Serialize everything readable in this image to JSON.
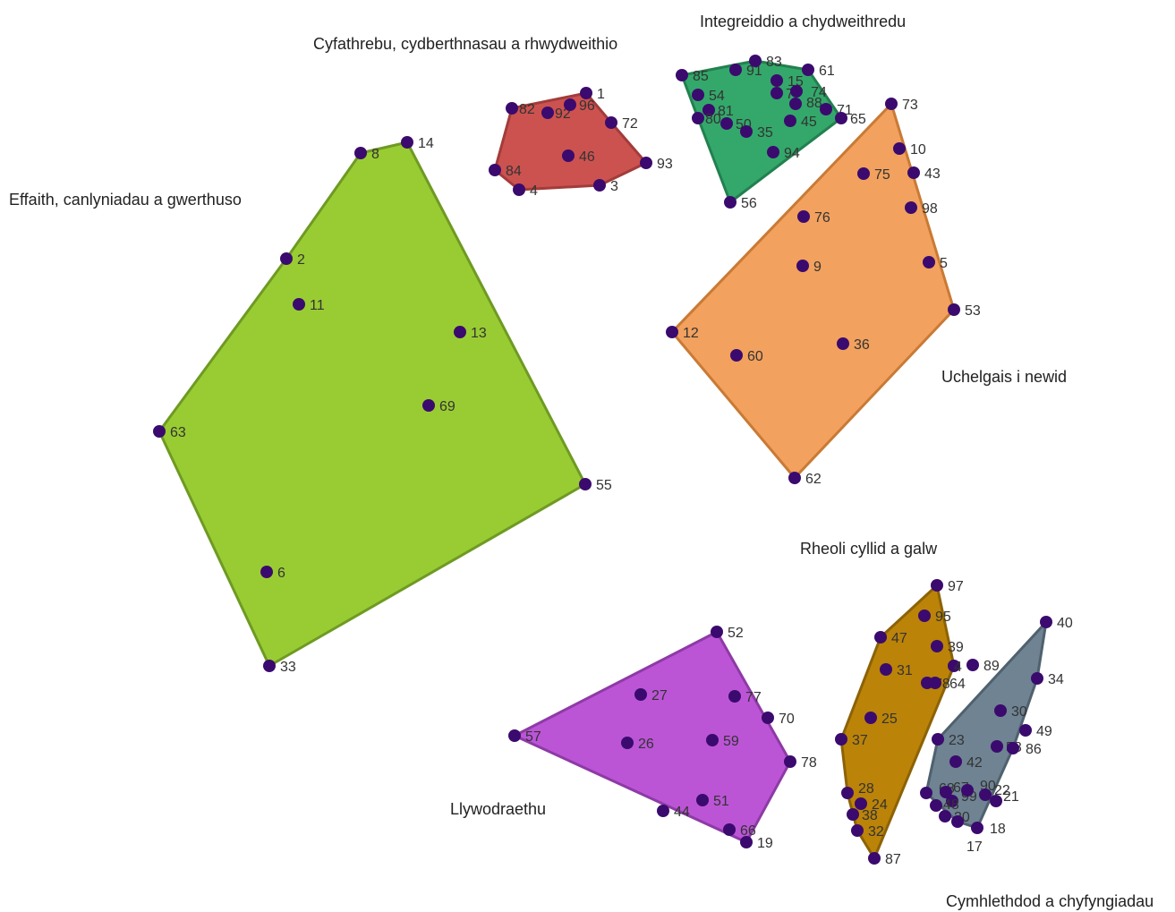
{
  "point_color": "#3b0a6e",
  "clusters": [
    {
      "id": "effaith",
      "label": "Effaith, canlyniadau a gwerthuso",
      "fill": "#99cc33",
      "stroke": "#6e9a23",
      "hull": [
        "8",
        "14",
        "55",
        "33",
        "63",
        "2"
      ],
      "points": [
        "8",
        "14",
        "2",
        "11",
        "13",
        "69",
        "63",
        "55",
        "6",
        "33"
      ]
    },
    {
      "id": "cyfathrebu",
      "label": "Cyfathrebu, cydberthnasau a rhwydweithio",
      "fill": "#cc5250",
      "stroke": "#a23c3a",
      "hull": [
        "82",
        "1",
        "72",
        "93",
        "3",
        "4",
        "84"
      ],
      "points": [
        "82",
        "92",
        "96",
        "1",
        "72",
        "46",
        "93",
        "84",
        "4",
        "3"
      ]
    },
    {
      "id": "integreiddio",
      "label": "Integreiddio a chydweithredu",
      "fill": "#33a86a",
      "stroke": "#23804f",
      "hull": [
        "85",
        "83",
        "61",
        "65",
        "56",
        "80"
      ],
      "points": [
        "85",
        "91",
        "83",
        "61",
        "15",
        "7",
        "74",
        "88",
        "54",
        "81",
        "80",
        "50",
        "35",
        "45",
        "71",
        "65",
        "94",
        "56"
      ]
    },
    {
      "id": "uchelgais",
      "label": "Uchelgais i newid",
      "fill": "#f2a15e",
      "stroke": "#c97a35",
      "hull": [
        "73",
        "53",
        "62",
        "12"
      ],
      "points": [
        "73",
        "10",
        "75",
        "43",
        "98",
        "76",
        "9",
        "5",
        "53",
        "12",
        "60",
        "36",
        "62"
      ]
    },
    {
      "id": "rheoli",
      "label": "Rheoli cyllid a galw",
      "fill": "#bb8308",
      "stroke": "#8c6206",
      "hull": [
        "97",
        "4x",
        "87",
        "32",
        "28",
        "37",
        "47"
      ],
      "points": [
        "97",
        "95",
        "47",
        "39",
        "4x",
        "89",
        "31",
        "78",
        "64",
        "25",
        "37",
        "28",
        "24",
        "38",
        "32",
        "87"
      ]
    },
    {
      "id": "cymhlethdod",
      "label": "Cymhlethdod a chyfyngiadau",
      "fill": "#6f8392",
      "stroke": "#4f616e",
      "hull": [
        "40",
        "34",
        "86",
        "18",
        "17",
        "68",
        "23"
      ],
      "points": [
        "40",
        "34",
        "30",
        "49",
        "23",
        "58",
        "86",
        "42",
        "68",
        "67",
        "99",
        "90",
        "22",
        "21",
        "48",
        "20",
        "18",
        "17"
      ]
    },
    {
      "id": "llywodraethu",
      "label": "Llywodraethu",
      "fill": "#bb55d6",
      "stroke": "#8e3aa6",
      "hull": [
        "52",
        "78",
        "19",
        "57"
      ],
      "points": [
        "52",
        "27",
        "77",
        "70",
        "57",
        "26",
        "59",
        "78",
        "51",
        "44",
        "66",
        "19"
      ]
    }
  ]
}
